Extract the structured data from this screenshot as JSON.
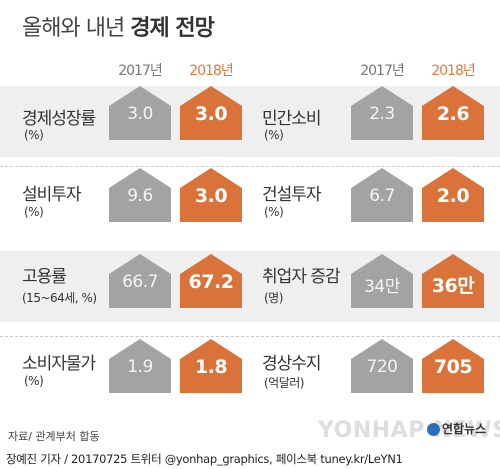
{
  "header": {
    "title_light": "올해와 내년",
    "title_bold": "경제 전망"
  },
  "years": {
    "prev": "2017년",
    "next": "2018년"
  },
  "colors": {
    "gray": "#a3a3a3",
    "orange": "#d9733a",
    "band": "#efefef"
  },
  "rows": [
    {
      "left": {
        "label": "경제성장률",
        "unit": "(%)",
        "v2017": "3.0",
        "v2018": "3.0"
      },
      "right": {
        "label": "민간소비",
        "unit": "(%)",
        "v2017": "2.3",
        "v2018": "2.6"
      }
    },
    {
      "left": {
        "label": "설비투자",
        "unit": "(%)",
        "v2017": "9.6",
        "v2018": "3.0"
      },
      "right": {
        "label": "건설투자",
        "unit": "(%)",
        "v2017": "6.7",
        "v2018": "2.0"
      }
    },
    {
      "left": {
        "label": "고용률",
        "unit": "(15~64세, %)",
        "v2017": "66.7",
        "v2018": "67.2"
      },
      "right": {
        "label": "취업자 증감",
        "unit": "(명)",
        "v2017": "34만",
        "v2018": "36만"
      }
    },
    {
      "left": {
        "label": "소비자물가",
        "unit": "(%)",
        "v2017": "1.9",
        "v2018": "1.8"
      },
      "right": {
        "label": "경상수지",
        "unit": "(억달러)",
        "v2017": "720",
        "v2018": "705"
      }
    }
  ],
  "footer": {
    "source": "자료/ 관계부처 합동",
    "credit": "장예진 기자 / 20170725 트위터 @yonhap_graphics, 페이스북 tuney.kr/LeYN1",
    "logo": "연합뉴스",
    "watermark": "YONHAP NEWS"
  }
}
